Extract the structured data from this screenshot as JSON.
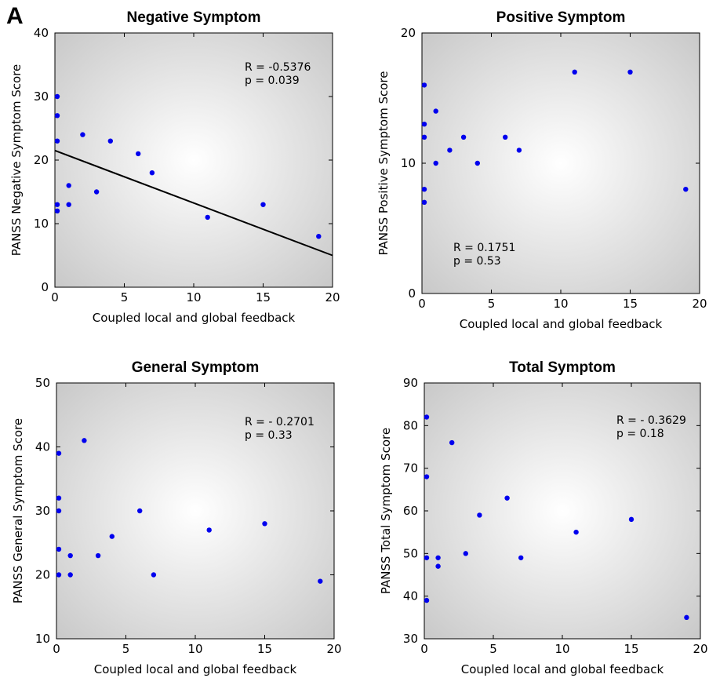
{
  "figure": {
    "panel_letter": "A"
  },
  "chart_data": [
    {
      "type": "scatter",
      "title": "Negative Symptom",
      "xlabel": "Coupled local and global feedback",
      "ylabel": "PANSS Negative Symptom Score",
      "xlim": [
        0,
        20
      ],
      "ylim": [
        0,
        40
      ],
      "xticks": [
        0,
        5,
        10,
        15,
        20
      ],
      "yticks": [
        0,
        10,
        20,
        30,
        40
      ],
      "stats": [
        "R = -0.5376",
        "p = 0.039"
      ],
      "stats_position": "top-right",
      "points": [
        {
          "x": 0,
          "y": 30
        },
        {
          "x": 0,
          "y": 27
        },
        {
          "x": 0,
          "y": 23
        },
        {
          "x": 0,
          "y": 13
        },
        {
          "x": 0,
          "y": 12
        },
        {
          "x": 1,
          "y": 16
        },
        {
          "x": 1,
          "y": 13
        },
        {
          "x": 2,
          "y": 24
        },
        {
          "x": 3,
          "y": 15
        },
        {
          "x": 4,
          "y": 23
        },
        {
          "x": 6,
          "y": 21
        },
        {
          "x": 7,
          "y": 18
        },
        {
          "x": 11,
          "y": 11
        },
        {
          "x": 15,
          "y": 13
        },
        {
          "x": 19,
          "y": 8
        }
      ],
      "fit_line": {
        "x": [
          0,
          20
        ],
        "y": [
          21.5,
          5
        ]
      },
      "point_color": "#0000ee",
      "line_color": "#000000"
    },
    {
      "type": "scatter",
      "title": "Positive Symptom",
      "xlabel": "Coupled local and global feedback",
      "ylabel": "PANSS Positive Symptom Score",
      "xlim": [
        0,
        20
      ],
      "ylim": [
        0,
        20
      ],
      "xticks": [
        0,
        5,
        10,
        15,
        20
      ],
      "yticks": [
        0,
        10,
        20
      ],
      "stats": [
        "R = 0.1751",
        "p = 0.53"
      ],
      "stats_position": "bottom-left",
      "points": [
        {
          "x": 0,
          "y": 16
        },
        {
          "x": 0,
          "y": 13
        },
        {
          "x": 0,
          "y": 12
        },
        {
          "x": 0,
          "y": 8
        },
        {
          "x": 0,
          "y": 7
        },
        {
          "x": 1,
          "y": 14
        },
        {
          "x": 1,
          "y": 10
        },
        {
          "x": 2,
          "y": 11
        },
        {
          "x": 3,
          "y": 12
        },
        {
          "x": 4,
          "y": 10
        },
        {
          "x": 6,
          "y": 12
        },
        {
          "x": 7,
          "y": 11
        },
        {
          "x": 11,
          "y": 17
        },
        {
          "x": 15,
          "y": 17
        },
        {
          "x": 19,
          "y": 8
        }
      ],
      "point_color": "#0000ee"
    },
    {
      "type": "scatter",
      "title": "General Symptom",
      "xlabel": "Coupled local and global feedback",
      "ylabel": "PANSS General Symptom Score",
      "xlim": [
        0,
        20
      ],
      "ylim": [
        10,
        50
      ],
      "xticks": [
        0,
        5,
        10,
        15,
        20
      ],
      "yticks": [
        10,
        20,
        30,
        40,
        50
      ],
      "stats": [
        "R = - 0.2701",
        "p = 0.33"
      ],
      "stats_position": "top-right",
      "points": [
        {
          "x": 0,
          "y": 39
        },
        {
          "x": 0,
          "y": 32
        },
        {
          "x": 0,
          "y": 30
        },
        {
          "x": 0,
          "y": 24
        },
        {
          "x": 0,
          "y": 20
        },
        {
          "x": 1,
          "y": 23
        },
        {
          "x": 1,
          "y": 20
        },
        {
          "x": 2,
          "y": 41
        },
        {
          "x": 3,
          "y": 23
        },
        {
          "x": 4,
          "y": 26
        },
        {
          "x": 6,
          "y": 30
        },
        {
          "x": 7,
          "y": 20
        },
        {
          "x": 11,
          "y": 27
        },
        {
          "x": 15,
          "y": 28
        },
        {
          "x": 19,
          "y": 19
        }
      ],
      "point_color": "#0000ee"
    },
    {
      "type": "scatter",
      "title": "Total Symptom",
      "xlabel": "Coupled local and global feedback",
      "ylabel": "PANSS Total Symptom Score",
      "xlim": [
        0,
        20
      ],
      "ylim": [
        30,
        90
      ],
      "xticks": [
        0,
        5,
        10,
        15,
        20
      ],
      "yticks": [
        30,
        40,
        50,
        60,
        70,
        80,
        90
      ],
      "stats": [
        "R = - 0.3629",
        "p = 0.18"
      ],
      "stats_position": "top-right",
      "points": [
        {
          "x": 0,
          "y": 82
        },
        {
          "x": 0,
          "y": 68
        },
        {
          "x": 0,
          "y": 49
        },
        {
          "x": 0,
          "y": 39
        },
        {
          "x": 1,
          "y": 49
        },
        {
          "x": 1,
          "y": 47
        },
        {
          "x": 2,
          "y": 76
        },
        {
          "x": 3,
          "y": 50
        },
        {
          "x": 4,
          "y": 59
        },
        {
          "x": 6,
          "y": 63
        },
        {
          "x": 7,
          "y": 49
        },
        {
          "x": 11,
          "y": 55
        },
        {
          "x": 15,
          "y": 58
        },
        {
          "x": 19,
          "y": 35
        }
      ],
      "point_color": "#0000ee"
    }
  ]
}
